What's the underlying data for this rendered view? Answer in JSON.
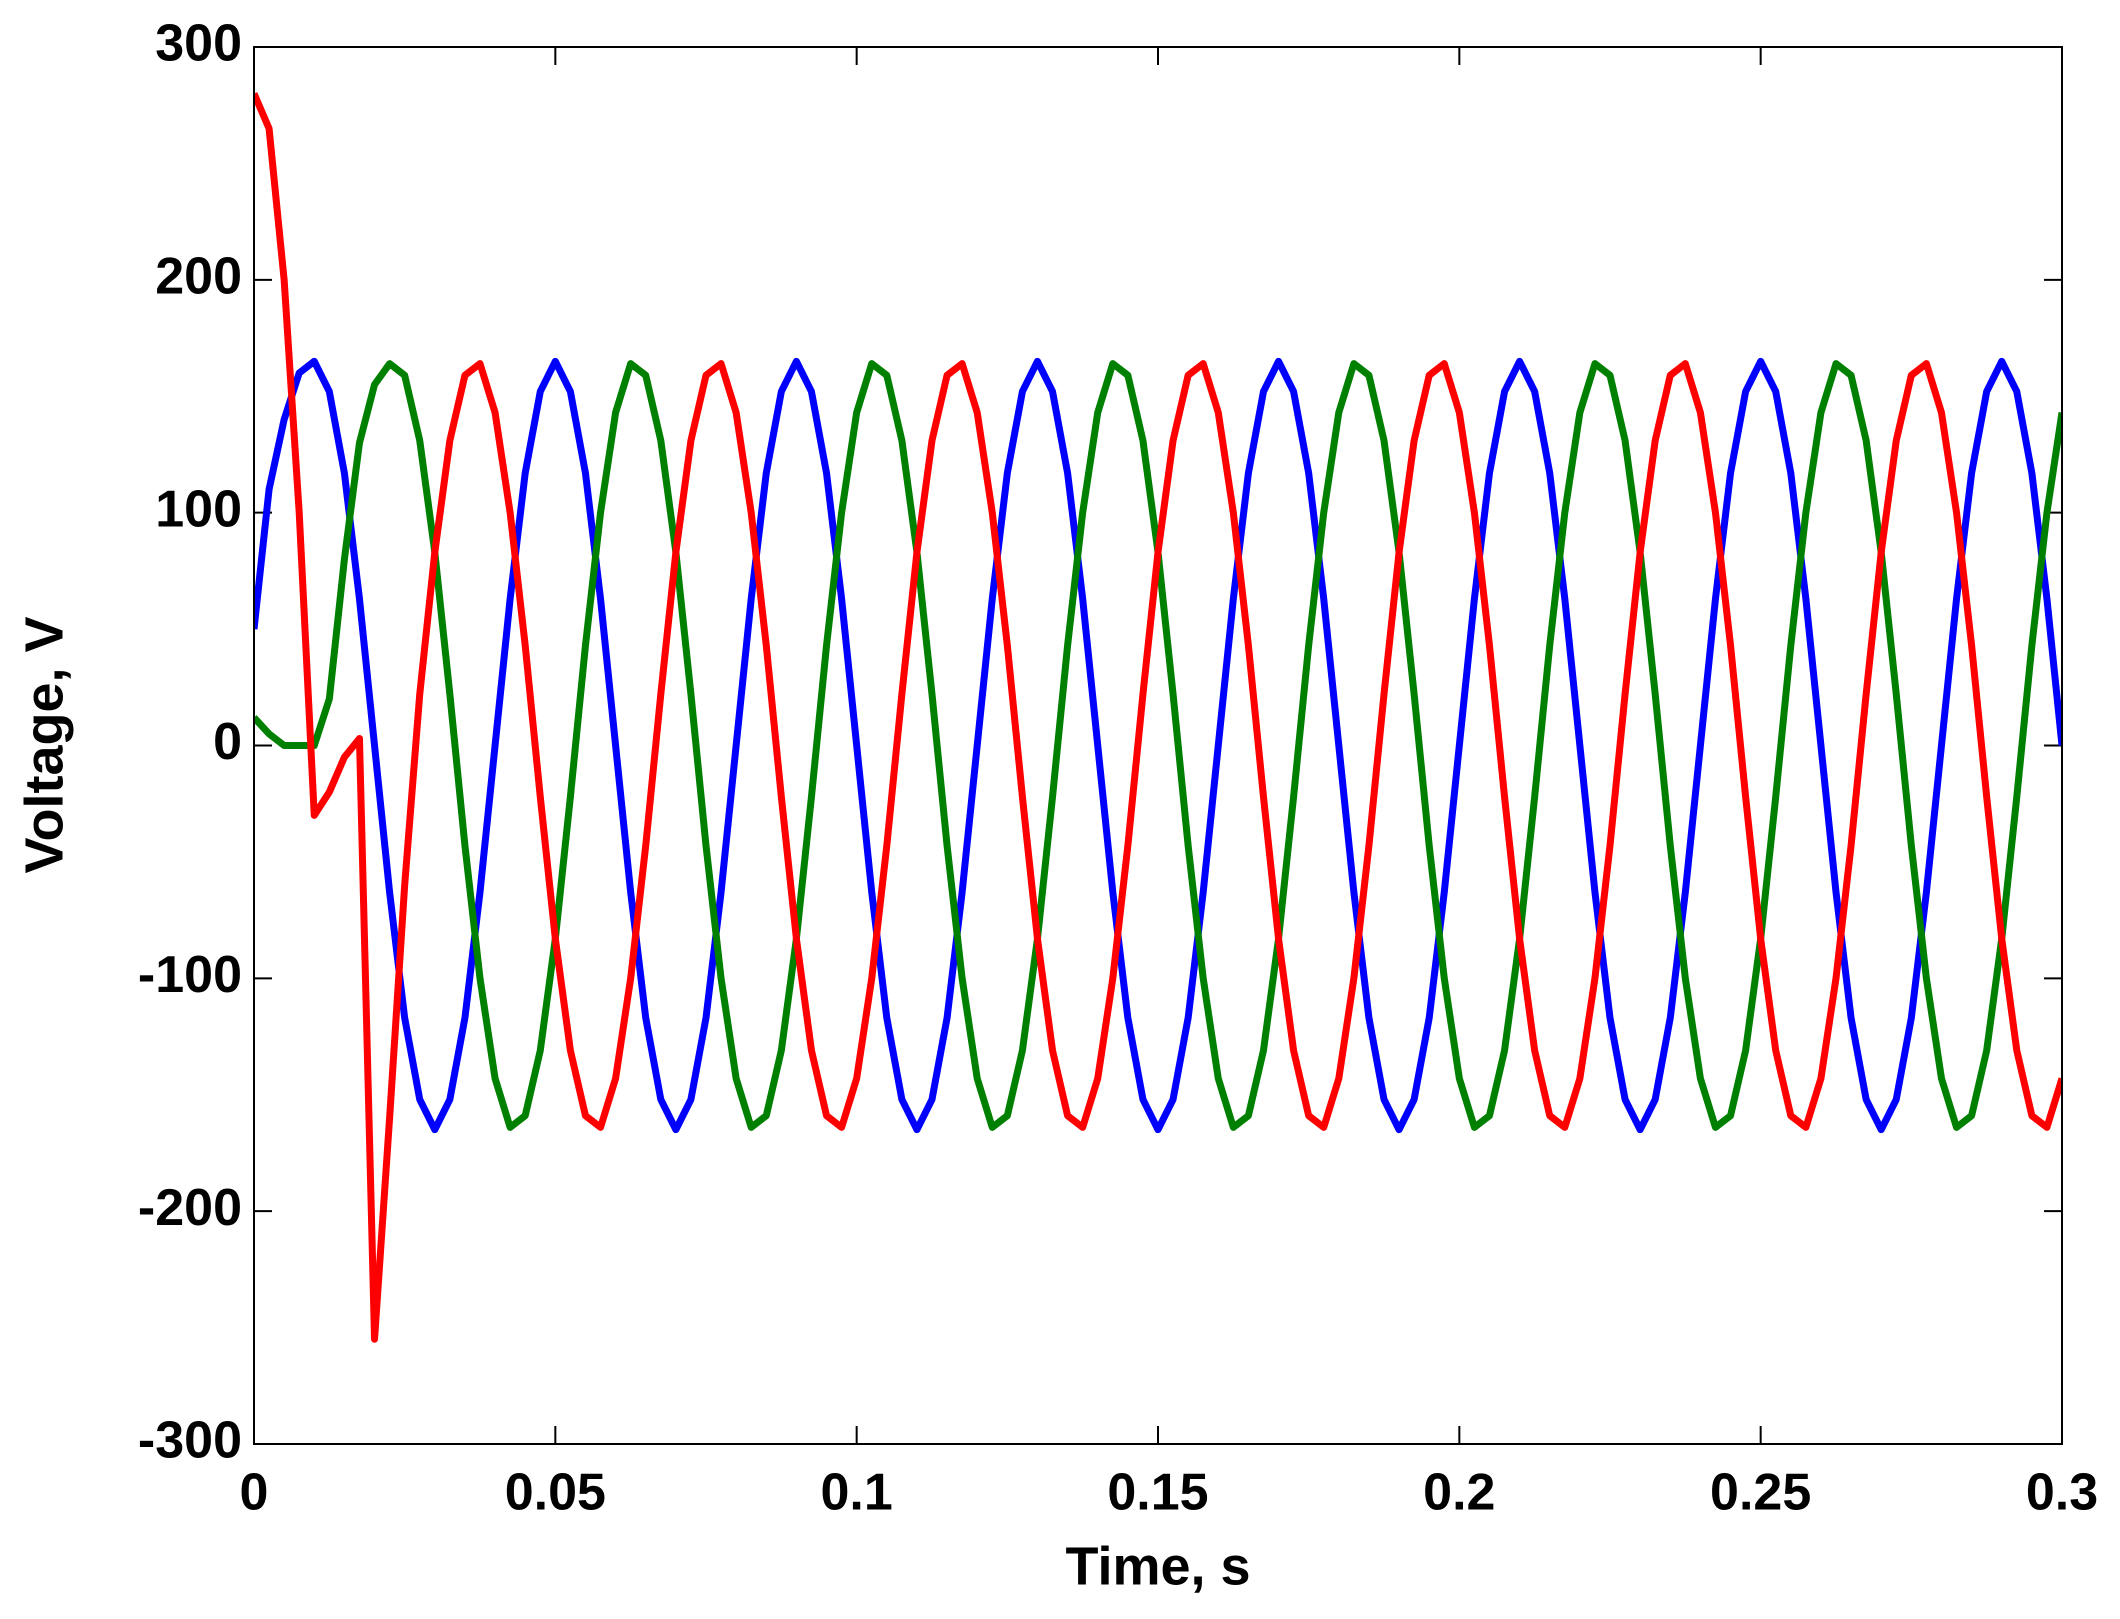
{
  "chart_data": {
    "type": "line",
    "xlabel": "Time, s",
    "ylabel": "Voltage, V",
    "xlim": [
      0,
      0.3
    ],
    "xticks": [
      0,
      0.05,
      0.1,
      0.15,
      0.2,
      0.25,
      0.3
    ],
    "ylim": [
      -300,
      300
    ],
    "yticks": [
      300,
      200,
      100,
      0,
      -100,
      -200,
      -300
    ],
    "x": [
      0,
      0.0025,
      0.005,
      0.0075,
      0.01,
      0.0125,
      0.015,
      0.0175,
      0.02,
      0.0225,
      0.025,
      0.0275,
      0.03,
      0.0325,
      0.035,
      0.0375,
      0.04,
      0.0425,
      0.045,
      0.0475,
      0.05,
      0.0525,
      0.055,
      0.0575,
      0.06,
      0.0625,
      0.065,
      0.0675,
      0.07,
      0.0725,
      0.075,
      0.0775,
      0.08,
      0.0825,
      0.085,
      0.0875,
      0.09,
      0.0925,
      0.095,
      0.0975,
      0.1,
      0.1025,
      0.105,
      0.1075,
      0.11,
      0.1125,
      0.115,
      0.1175,
      0.12,
      0.1225,
      0.125,
      0.1275,
      0.13,
      0.1325,
      0.135,
      0.1375,
      0.14,
      0.1425,
      0.145,
      0.1475,
      0.15,
      0.1525,
      0.155,
      0.1575,
      0.16,
      0.1625,
      0.165,
      0.1675,
      0.17,
      0.1725,
      0.175,
      0.1775,
      0.18,
      0.1825,
      0.185,
      0.1875,
      0.19,
      0.1925,
      0.195,
      0.1975,
      0.2,
      0.2025,
      0.205,
      0.2075,
      0.21,
      0.2125,
      0.215,
      0.2175,
      0.22,
      0.2225,
      0.225,
      0.2275,
      0.23,
      0.2325,
      0.235,
      0.2375,
      0.24,
      0.2425,
      0.245,
      0.2475,
      0.25,
      0.2525,
      0.255,
      0.2575,
      0.26,
      0.2625,
      0.265,
      0.2675,
      0.27,
      0.2725,
      0.275,
      0.2775,
      0.28,
      0.2825,
      0.285,
      0.2875,
      0.29,
      0.2925,
      0.295,
      0.2975,
      0.3
    ],
    "series": [
      {
        "color": "#0000ff",
        "values": [
          50,
          110,
          140,
          160,
          165,
          152,
          117,
          63,
          0,
          -63,
          -117,
          -152,
          -165,
          -152,
          -117,
          -63,
          0,
          63,
          117,
          152,
          165,
          152,
          117,
          63,
          0,
          -63,
          -117,
          -152,
          -165,
          -152,
          -117,
          -63,
          0,
          63,
          117,
          152,
          165,
          152,
          117,
          63,
          0,
          -63,
          -117,
          -152,
          -165,
          -152,
          -117,
          -63,
          0,
          63,
          117,
          152,
          165,
          152,
          117,
          63,
          0,
          -63,
          -117,
          -152,
          -165,
          -152,
          -117,
          -63,
          0,
          63,
          117,
          152,
          165,
          152,
          117,
          63,
          0,
          -63,
          -117,
          -152,
          -165,
          -152,
          -117,
          -63,
          0,
          63,
          117,
          152,
          165,
          152,
          117,
          63,
          0,
          -63,
          -117,
          -152,
          -165,
          -152,
          -117,
          -63,
          0,
          63,
          117,
          152,
          165,
          152,
          117,
          63,
          0,
          -63,
          -117,
          -152,
          -165,
          -152,
          -117,
          -63,
          0,
          63,
          117,
          152,
          165,
          152,
          117,
          63,
          0
        ]
      },
      {
        "color": "#008000",
        "values": [
          12,
          5,
          0,
          0,
          0,
          20,
          80,
          130,
          155,
          164,
          159,
          131,
          83,
          22,
          -43,
          -100,
          -143,
          -164,
          -159,
          -131,
          -83,
          -22,
          43,
          100,
          143,
          164,
          159,
          131,
          83,
          22,
          -43,
          -100,
          -143,
          -164,
          -159,
          -131,
          -83,
          -22,
          43,
          100,
          143,
          164,
          159,
          131,
          83,
          22,
          -43,
          -100,
          -143,
          -164,
          -159,
          -131,
          -83,
          -22,
          43,
          100,
          143,
          164,
          159,
          131,
          83,
          22,
          -43,
          -100,
          -143,
          -164,
          -159,
          -131,
          -83,
          -22,
          43,
          100,
          143,
          164,
          159,
          131,
          83,
          22,
          -43,
          -100,
          -143,
          -164,
          -159,
          -131,
          -83,
          -22,
          43,
          100,
          143,
          164,
          159,
          131,
          83,
          22,
          -43,
          -100,
          -143,
          -164,
          -159,
          -131,
          -83,
          -22,
          43,
          100,
          143,
          164,
          159,
          131,
          83,
          22,
          -43,
          -100,
          -143,
          -164,
          -159,
          -131,
          -83,
          -22,
          43,
          100,
          143
        ]
      },
      {
        "color": "#ff0000",
        "values": [
          280,
          265,
          200,
          100,
          -30,
          -20,
          -5,
          3,
          -255,
          -160,
          -60,
          22,
          83,
          131,
          159,
          164,
          143,
          100,
          43,
          -22,
          -83,
          -131,
          -159,
          -164,
          -143,
          -100,
          -43,
          22,
          83,
          131,
          159,
          164,
          143,
          100,
          43,
          -22,
          -83,
          -131,
          -159,
          -164,
          -143,
          -100,
          -43,
          22,
          83,
          131,
          159,
          164,
          143,
          100,
          43,
          -22,
          -83,
          -131,
          -159,
          -164,
          -143,
          -100,
          -43,
          22,
          83,
          131,
          159,
          164,
          143,
          100,
          43,
          -22,
          -83,
          -131,
          -159,
          -164,
          -143,
          -100,
          -43,
          22,
          83,
          131,
          159,
          164,
          143,
          100,
          43,
          -22,
          -83,
          -131,
          -159,
          -164,
          -143,
          -100,
          -43,
          22,
          83,
          131,
          159,
          164,
          143,
          100,
          43,
          -22,
          -83,
          -131,
          -159,
          -164,
          -143,
          -100,
          -43,
          22,
          83,
          131,
          159,
          164,
          143,
          100,
          43,
          -22,
          -83,
          -131,
          -159,
          -164,
          -143
        ]
      }
    ]
  }
}
